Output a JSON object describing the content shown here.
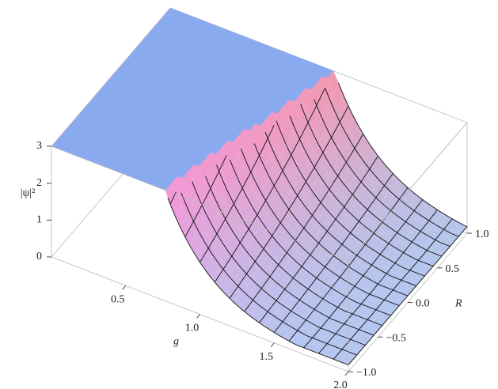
{
  "chart_data": {
    "type": "surface3d",
    "xlabel": "g",
    "ylabel": "R",
    "zlabel": "|ψ|²",
    "xlim": [
      0,
      2
    ],
    "ylim": [
      -1,
      1
    ],
    "zlim": [
      0,
      3
    ],
    "xticks": [
      0.5,
      {
        "value": 1,
        "label": "1.0"
      },
      1.5,
      {
        "value": 2,
        "label": "2.0"
      }
    ],
    "yticks": [
      {
        "value": -1,
        "label": "−1.0"
      },
      {
        "value": -0.5,
        "label": "−0.5"
      },
      {
        "value": 0,
        "label": "0.0"
      },
      0.5,
      {
        "value": 1,
        "label": "1.0"
      }
    ],
    "zticks": [
      0,
      1,
      2,
      3
    ]
  }
}
